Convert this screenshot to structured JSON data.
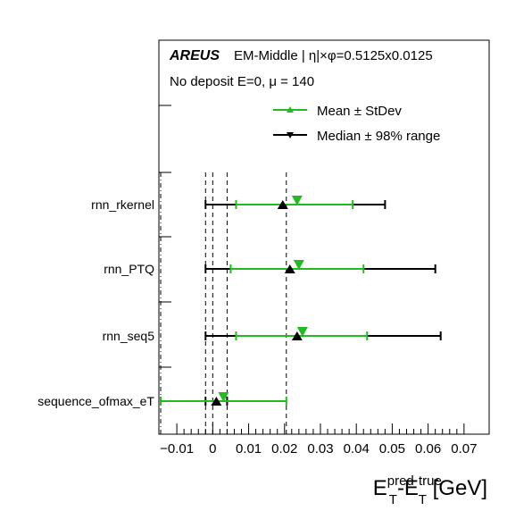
{
  "header": {
    "brand": "AREUS",
    "line1_rest": "EM-Middle | η|×φ=0.5125x0.0125",
    "line2": "No deposit E=0,  μ = 140"
  },
  "xaxis": {
    "label_base1": "E",
    "label_sup1": "pred",
    "label_sub1": "T",
    "label_dash": "-E",
    "label_sup2": "true",
    "label_sub2": "T",
    "label_unit": " [GeV]"
  },
  "colors": {
    "mean": "#22bb22",
    "median": "#000000"
  },
  "chart_data": {
    "type": "scatter",
    "orientation": "horizontal",
    "xlabel": "E_T^pred - E_T^true [GeV]",
    "xlim": [
      -0.015,
      0.077
    ],
    "xticks": [
      -0.01,
      0,
      0.01,
      0.02,
      0.03,
      0.04,
      0.05,
      0.06,
      0.07
    ],
    "xtick_labels": [
      "−0.01",
      "0",
      "0.01",
      "0.02",
      "0.03",
      "0.04",
      "0.05",
      "0.06",
      "0.07"
    ],
    "categories": [
      "rnn_rkernel",
      "rnn_PTQ",
      "rnn_seq5",
      "sequence_ofmax_eT"
    ],
    "legend": {
      "position": "top-right",
      "entries": [
        "Mean ± StDev",
        "Median ± 98% range"
      ]
    },
    "vertical_lines": [
      {
        "x": -0.0145,
        "style": "dashdot"
      },
      {
        "x": -0.002,
        "style": "dashed"
      },
      {
        "x": 0.0,
        "style": "dashed"
      },
      {
        "x": 0.004,
        "style": "dashed"
      },
      {
        "x": 0.0205,
        "style": "dashed"
      }
    ],
    "series": [
      {
        "name": "Mean ± StDev",
        "marker": "triangle-down",
        "values": [
          {
            "category": "rnn_rkernel",
            "center": 0.0235,
            "low": 0.0065,
            "high": 0.039
          },
          {
            "category": "rnn_PTQ",
            "center": 0.024,
            "low": 0.005,
            "high": 0.042
          },
          {
            "category": "rnn_seq5",
            "center": 0.025,
            "low": 0.0065,
            "high": 0.043
          },
          {
            "category": "sequence_ofmax_eT",
            "center": 0.003,
            "low": -0.0145,
            "high": 0.0205
          }
        ]
      },
      {
        "name": "Median ± 98% range",
        "marker": "triangle-up",
        "values": [
          {
            "category": "rnn_rkernel",
            "center": 0.0195,
            "low": -0.002,
            "high": 0.048
          },
          {
            "category": "rnn_PTQ",
            "center": 0.0215,
            "low": -0.002,
            "high": 0.062
          },
          {
            "category": "rnn_seq5",
            "center": 0.0235,
            "low": -0.002,
            "high": 0.0635
          },
          {
            "category": "sequence_ofmax_eT",
            "center": 0.001,
            "low": -0.002,
            "high": 0.004
          }
        ]
      }
    ]
  }
}
